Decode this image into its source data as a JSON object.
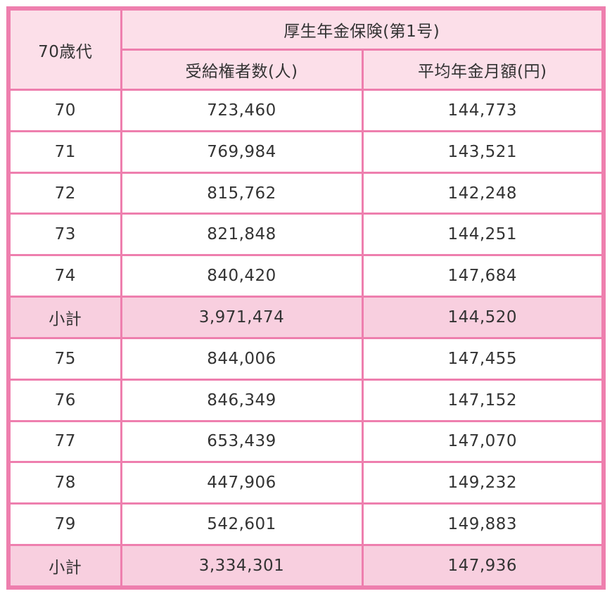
{
  "colors": {
    "border_pink": "#ee7fae",
    "header_bg": "#fcdfe9",
    "subtotal_bg": "#f8cfdf",
    "row_bg": "#ffffff",
    "text": "#333333"
  },
  "table": {
    "corner_header": "70歳代",
    "group_header": "厚生年金保険(第1号)",
    "col_headers": {
      "beneficiaries": "受給権者数(人)",
      "avg_amount": "平均年金月額(円)"
    },
    "rows": [
      {
        "label": "70",
        "beneficiaries": "723,460",
        "avg": "144,773",
        "subtotal": false
      },
      {
        "label": "71",
        "beneficiaries": "769,984",
        "avg": "143,521",
        "subtotal": false
      },
      {
        "label": "72",
        "beneficiaries": "815,762",
        "avg": "142,248",
        "subtotal": false
      },
      {
        "label": "73",
        "beneficiaries": "821,848",
        "avg": "144,251",
        "subtotal": false
      },
      {
        "label": "74",
        "beneficiaries": "840,420",
        "avg": "147,684",
        "subtotal": false
      },
      {
        "label": "小計",
        "beneficiaries": "3,971,474",
        "avg": "144,520",
        "subtotal": true
      },
      {
        "label": "75",
        "beneficiaries": "844,006",
        "avg": "147,455",
        "subtotal": false
      },
      {
        "label": "76",
        "beneficiaries": "846,349",
        "avg": "147,152",
        "subtotal": false
      },
      {
        "label": "77",
        "beneficiaries": "653,439",
        "avg": "147,070",
        "subtotal": false
      },
      {
        "label": "78",
        "beneficiaries": "447,906",
        "avg": "149,232",
        "subtotal": false
      },
      {
        "label": "79",
        "beneficiaries": "542,601",
        "avg": "149,883",
        "subtotal": false
      },
      {
        "label": "小計",
        "beneficiaries": "3,334,301",
        "avg": "147,936",
        "subtotal": true
      }
    ]
  },
  "chart_data": {
    "type": "table",
    "title": "70歳代 厚生年金保険(第1号)",
    "columns": [
      "70歳代",
      "受給権者数(人)",
      "平均年金月額(円)"
    ],
    "rows": [
      [
        "70",
        723460,
        144773
      ],
      [
        "71",
        769984,
        143521
      ],
      [
        "72",
        815762,
        142248
      ],
      [
        "73",
        821848,
        144251
      ],
      [
        "74",
        840420,
        147684
      ],
      [
        "小計",
        3971474,
        144520
      ],
      [
        "75",
        844006,
        147455
      ],
      [
        "76",
        846349,
        147152
      ],
      [
        "77",
        653439,
        147070
      ],
      [
        "78",
        447906,
        149232
      ],
      [
        "79",
        542601,
        149883
      ],
      [
        "小計",
        3334301,
        147936
      ]
    ]
  }
}
